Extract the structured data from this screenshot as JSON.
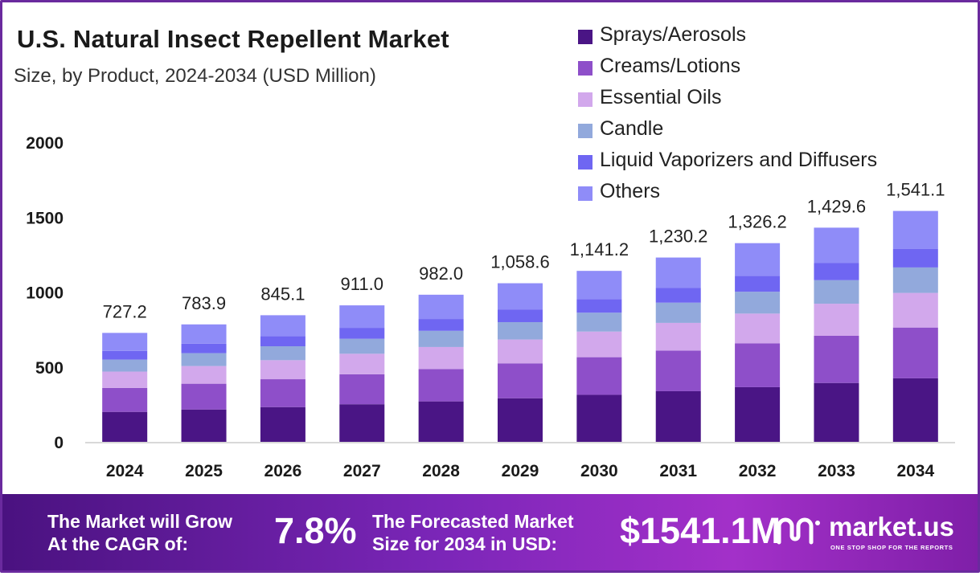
{
  "header": {
    "title": "U.S. Natural Insect Repellent Market",
    "subtitle": "Size, by Product, 2024-2034 (USD Million)"
  },
  "chart_data": {
    "type": "bar",
    "stacked": true,
    "title": "U.S. Natural Insect Repellent Market",
    "subtitle": "Size, by Product, 2024-2034 (USD Million)",
    "xlabel": "",
    "ylabel": "",
    "ylim": [
      0,
      2000
    ],
    "yticks": [
      0,
      500,
      1000,
      1500,
      2000
    ],
    "grid": false,
    "legend_position": "top-right",
    "categories": [
      "2024",
      "2025",
      "2026",
      "2027",
      "2028",
      "2029",
      "2030",
      "2031",
      "2032",
      "2033",
      "2034"
    ],
    "totals": [
      727.2,
      783.9,
      845.1,
      911.0,
      982.0,
      1058.6,
      1141.2,
      1230.2,
      1326.2,
      1429.6,
      1541.1
    ],
    "total_labels": [
      "727.2",
      "783.9",
      "845.1",
      "911.0",
      "982.0",
      "1,058.6",
      "1,141.2",
      "1,230.2",
      "1,326.2",
      "1,429.6",
      "1,541.1"
    ],
    "series": [
      {
        "name": "Sprays/Aerosols",
        "color": "#4a1585",
        "values": [
          200,
          216,
          232,
          251,
          270,
          291,
          314,
          338,
          365,
          393,
          424
        ]
      },
      {
        "name": "Creams/Lotions",
        "color": "#8e4fc9",
        "values": [
          160,
          172,
          186,
          200,
          216,
          233,
          251,
          271,
          292,
          315,
          339
        ]
      },
      {
        "name": "Essential Oils",
        "color": "#d2a8ec",
        "values": [
          109,
          118,
          127,
          137,
          147,
          159,
          171,
          185,
          199,
          214,
          231
        ]
      },
      {
        "name": "Candle",
        "color": "#92a9dc",
        "values": [
          80,
          86,
          93,
          100,
          108,
          116,
          126,
          135,
          146,
          157,
          170
        ]
      },
      {
        "name": "Liquid Vaporizers and Diffusers",
        "color": "#6f66f2",
        "values": [
          58,
          63,
          68,
          73,
          79,
          85,
          91,
          98,
          106,
          114,
          123
        ]
      },
      {
        "name": "Others",
        "color": "#8f8cf8",
        "values": [
          120.2,
          128.9,
          139.1,
          150.0,
          162.0,
          174.6,
          188.2,
          203.2,
          218.2,
          236.6,
          254.1
        ]
      }
    ]
  },
  "banner": {
    "cagr_label_line1": "The Market will Grow",
    "cagr_label_line2": "At the CAGR of:",
    "cagr_value": "7.8%",
    "forecast_label_line1": "The Forecasted Market",
    "forecast_label_line2": "Size for 2034 in USD:",
    "forecast_value": "$1541.1M",
    "logo_text": "market.us",
    "logo_tagline": "ONE STOP SHOP FOR THE REPORTS"
  },
  "colors": {
    "frame": "#6a2a9e",
    "banner_start": "#4a1280",
    "banner_end": "#a330c9",
    "axis": "#cccccc",
    "text": "#1a1a1a"
  }
}
